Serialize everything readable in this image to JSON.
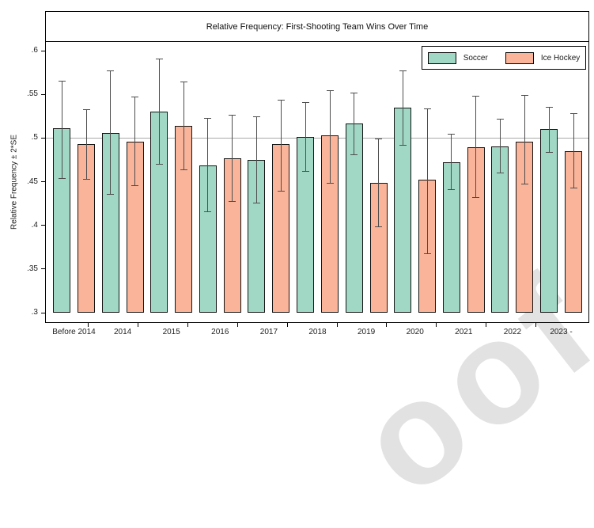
{
  "figure": {
    "watermark_text": "oof"
  },
  "chart_data": {
    "type": "bar",
    "title": "Relative Frequency: First-Shooting Team Wins Over Time",
    "xlabel": "",
    "ylabel": "Relative Frequency ± 2*SE",
    "ylim": [
      0.3,
      0.6
    ],
    "y_ticks": [
      0.6,
      0.55,
      0.5,
      0.45,
      0.4,
      0.35,
      0.3
    ],
    "y_tick_labels": [
      ".6",
      ".55",
      ".5",
      ".45",
      ".4",
      ".35",
      ".3"
    ],
    "reference_line": 0.5,
    "bar_baseline": 0.3,
    "grid": false,
    "legend_position": "top-right",
    "categories": [
      "Before 2014",
      "2014",
      "2015",
      "2016",
      "2017",
      "2018",
      "2019",
      "2020",
      "2021",
      "2022",
      "2023 -"
    ],
    "series": [
      {
        "name": "Soccer",
        "color": "#a0d8c5",
        "values": [
          0.511,
          0.506,
          0.53,
          0.469,
          0.475,
          0.501,
          0.517,
          0.535,
          0.472,
          0.49,
          0.51
        ],
        "err_low": [
          0.454,
          0.436,
          0.47,
          0.416,
          0.426,
          0.462,
          0.481,
          0.492,
          0.441,
          0.46,
          0.484
        ],
        "err_high": [
          0.566,
          0.577,
          0.591,
          0.523,
          0.525,
          0.541,
          0.552,
          0.577,
          0.505,
          0.522,
          0.536
        ]
      },
      {
        "name": "Ice Hockey",
        "color": "#fab49a",
        "values": [
          0.493,
          0.496,
          0.514,
          0.477,
          0.493,
          0.503,
          0.449,
          0.452,
          0.489,
          0.496,
          0.485
        ],
        "err_low": [
          0.453,
          0.446,
          0.464,
          0.428,
          0.44,
          0.449,
          0.399,
          0.368,
          0.432,
          0.448,
          0.443
        ],
        "err_high": [
          0.533,
          0.547,
          0.565,
          0.527,
          0.544,
          0.555,
          0.499,
          0.534,
          0.548,
          0.549,
          0.528
        ]
      }
    ]
  }
}
